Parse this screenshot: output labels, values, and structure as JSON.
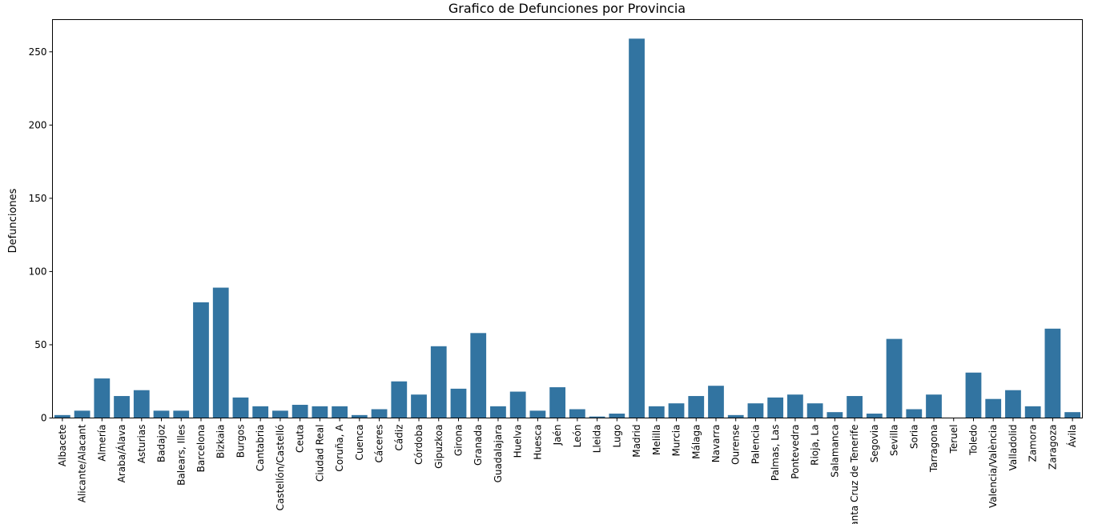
{
  "chart_data": {
    "type": "bar",
    "title": "Grafico de Defunciones por Provincia",
    "xlabel": "",
    "ylabel": "Defunciones",
    "ylim": [
      0,
      272
    ],
    "yticks": [
      0,
      50,
      100,
      150,
      200,
      250
    ],
    "grid": false,
    "bar_color": "#3274a1",
    "categories": [
      "Albacete",
      "Alicante/Alacant",
      "Almería",
      "Araba/Álava",
      "Asturias",
      "Badajoz",
      "Balears, Illes",
      "Barcelona",
      "Bizkaia",
      "Burgos",
      "Cantabria",
      "Castellón/Castelló",
      "Ceuta",
      "Ciudad Real",
      "Coruña, A",
      "Cuenca",
      "Cáceres",
      "Cádiz",
      "Córdoba",
      "Gipuzkoa",
      "Girona",
      "Granada",
      "Guadalajara",
      "Huelva",
      "Huesca",
      "Jaén",
      "León",
      "Lleida",
      "Lugo",
      "Madrid",
      "Melilla",
      "Murcia",
      "Málaga",
      "Navarra",
      "Ourense",
      "Palencia",
      "Palmas, Las",
      "Pontevedra",
      "Rioja, La",
      "Salamanca",
      "Santa Cruz de Tenerife",
      "Segovia",
      "Sevilla",
      "Soria",
      "Tarragona",
      "Teruel",
      "Toledo",
      "Valencia/València",
      "Valladolid",
      "Zamora",
      "Zaragoza",
      "Ávila"
    ],
    "values": [
      2,
      5,
      27,
      15,
      19,
      5,
      5,
      79,
      89,
      14,
      8,
      5,
      9,
      8,
      8,
      2,
      6,
      25,
      16,
      49,
      20,
      58,
      8,
      18,
      5,
      21,
      6,
      1,
      3,
      259,
      8,
      10,
      15,
      22,
      2,
      10,
      14,
      16,
      10,
      4,
      15,
      3,
      54,
      6,
      16,
      0,
      31,
      13,
      19,
      8,
      61,
      4
    ]
  }
}
